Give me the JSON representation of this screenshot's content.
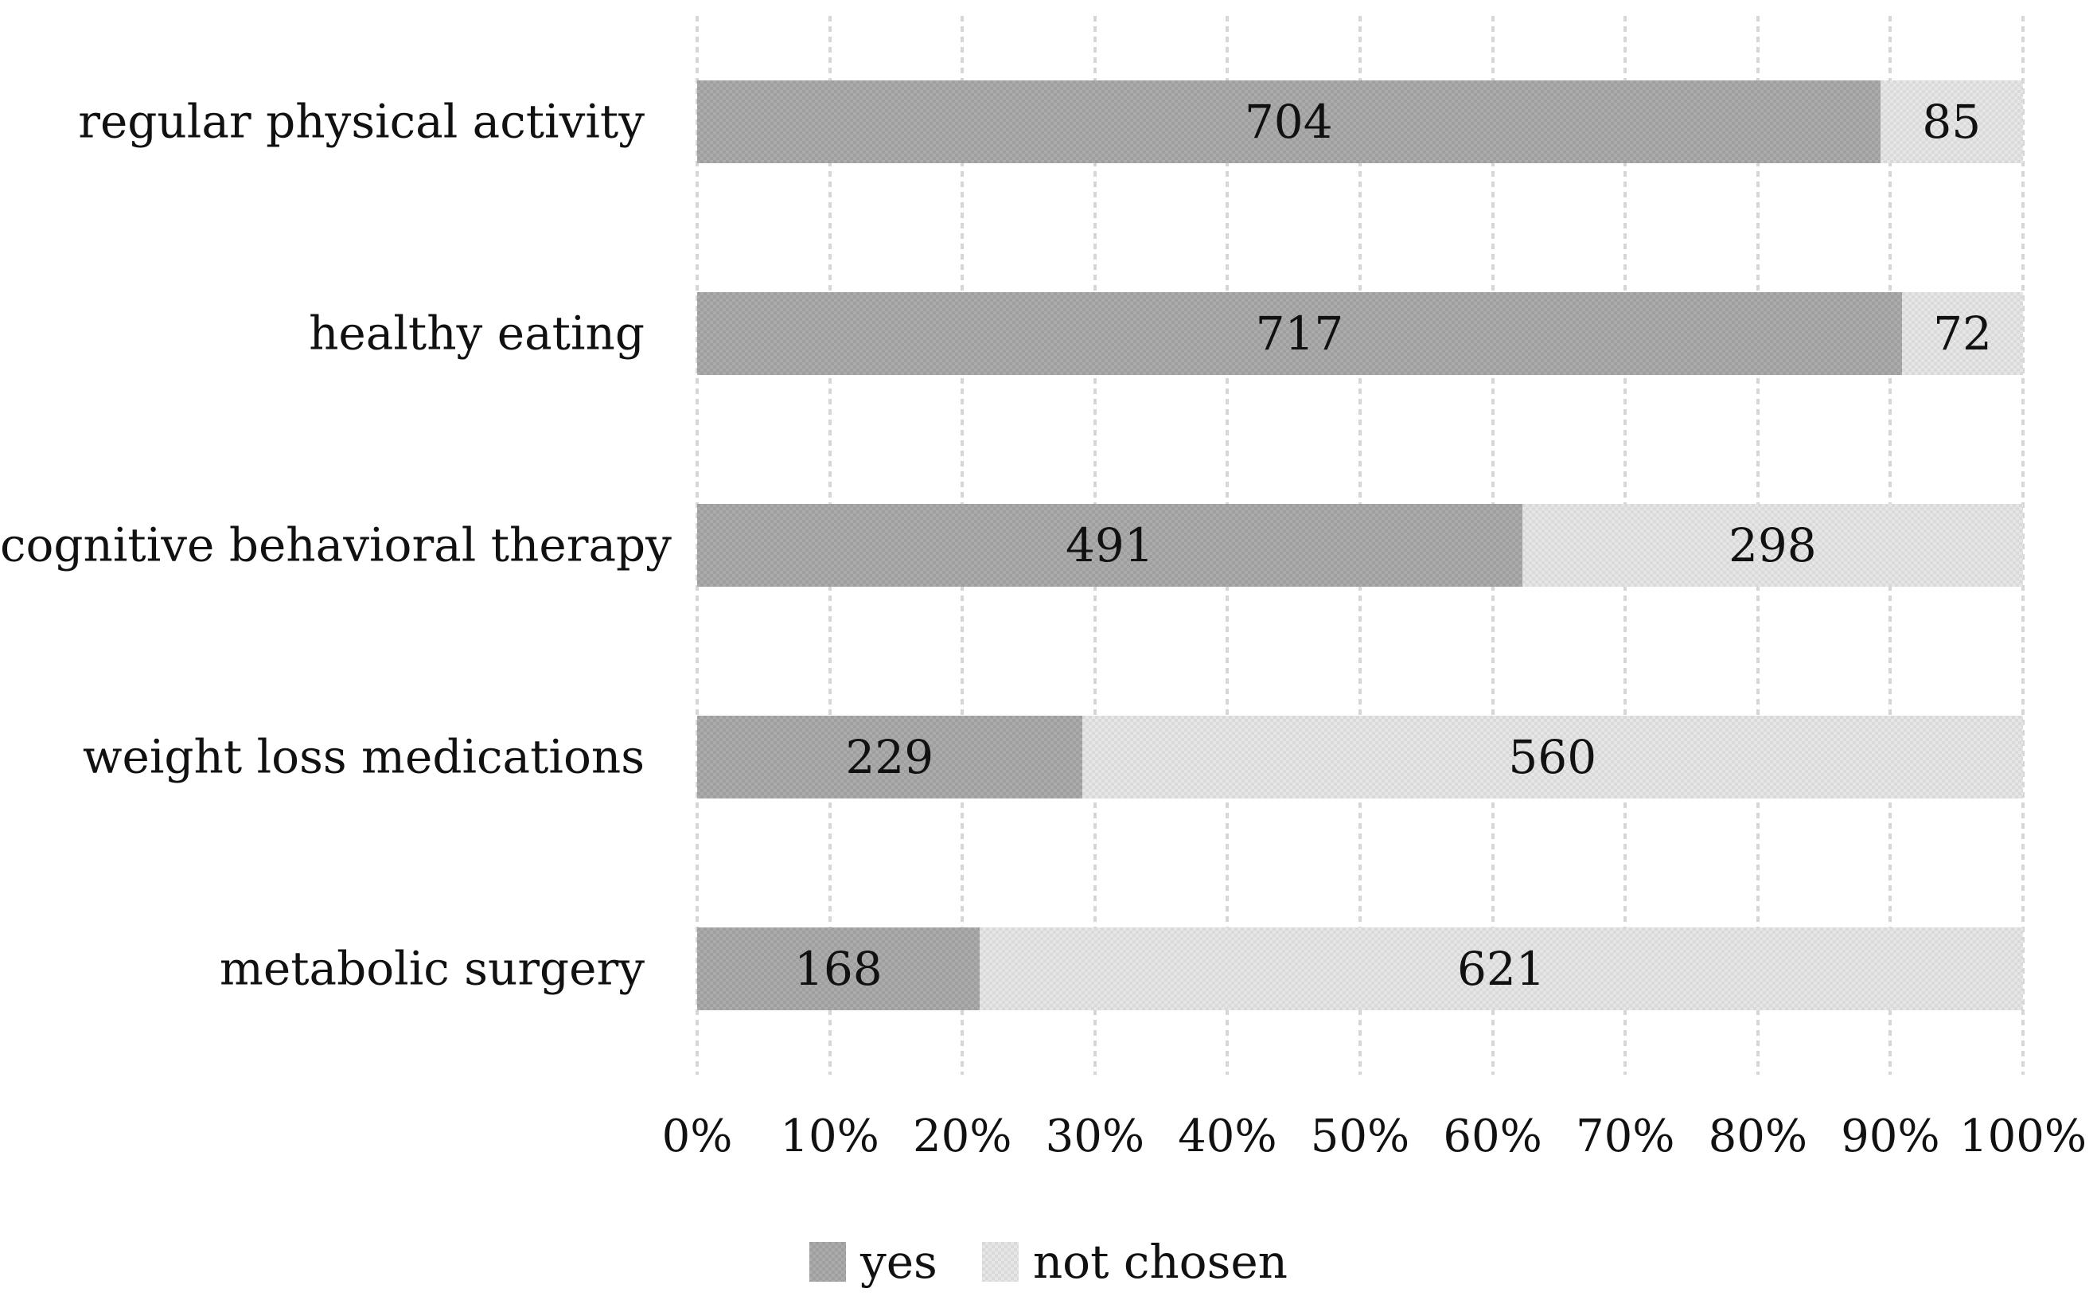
{
  "chart_data": {
    "type": "bar",
    "orientation": "horizontal",
    "stacked": true,
    "percent_stacked": true,
    "categories": [
      "regular physical activity",
      "healthy eating",
      "cognitive behavioral therapy",
      "weight loss medications",
      "metabolic surgery"
    ],
    "series": [
      {
        "name": "yes",
        "color": "#a6a6a6",
        "values": [
          704,
          717,
          491,
          229,
          168
        ]
      },
      {
        "name": "not chosen",
        "color": "#dfdfdf",
        "values": [
          85,
          72,
          298,
          560,
          621
        ]
      }
    ],
    "data_labels": [
      [
        "704",
        "85"
      ],
      [
        "717",
        "72"
      ],
      [
        "491",
        "298"
      ],
      [
        "229",
        "560"
      ],
      [
        "168",
        "621"
      ]
    ],
    "xlabel": "",
    "ylabel": "",
    "title": "",
    "x_axis": {
      "min": 0,
      "max": 1,
      "tick_labels": [
        "0%",
        "10%",
        "20%",
        "30%",
        "40%",
        "50%",
        "60%",
        "70%",
        "80%",
        "90%",
        "100%"
      ],
      "grid": true,
      "gridline_color": "#d6d6d6"
    },
    "legend": {
      "position": "bottom",
      "items": [
        {
          "label": "yes",
          "color": "#a6a6a6"
        },
        {
          "label": "not chosen",
          "color": "#dfdfdf"
        }
      ]
    },
    "text_color": "#111111",
    "background_color": "#ffffff"
  }
}
